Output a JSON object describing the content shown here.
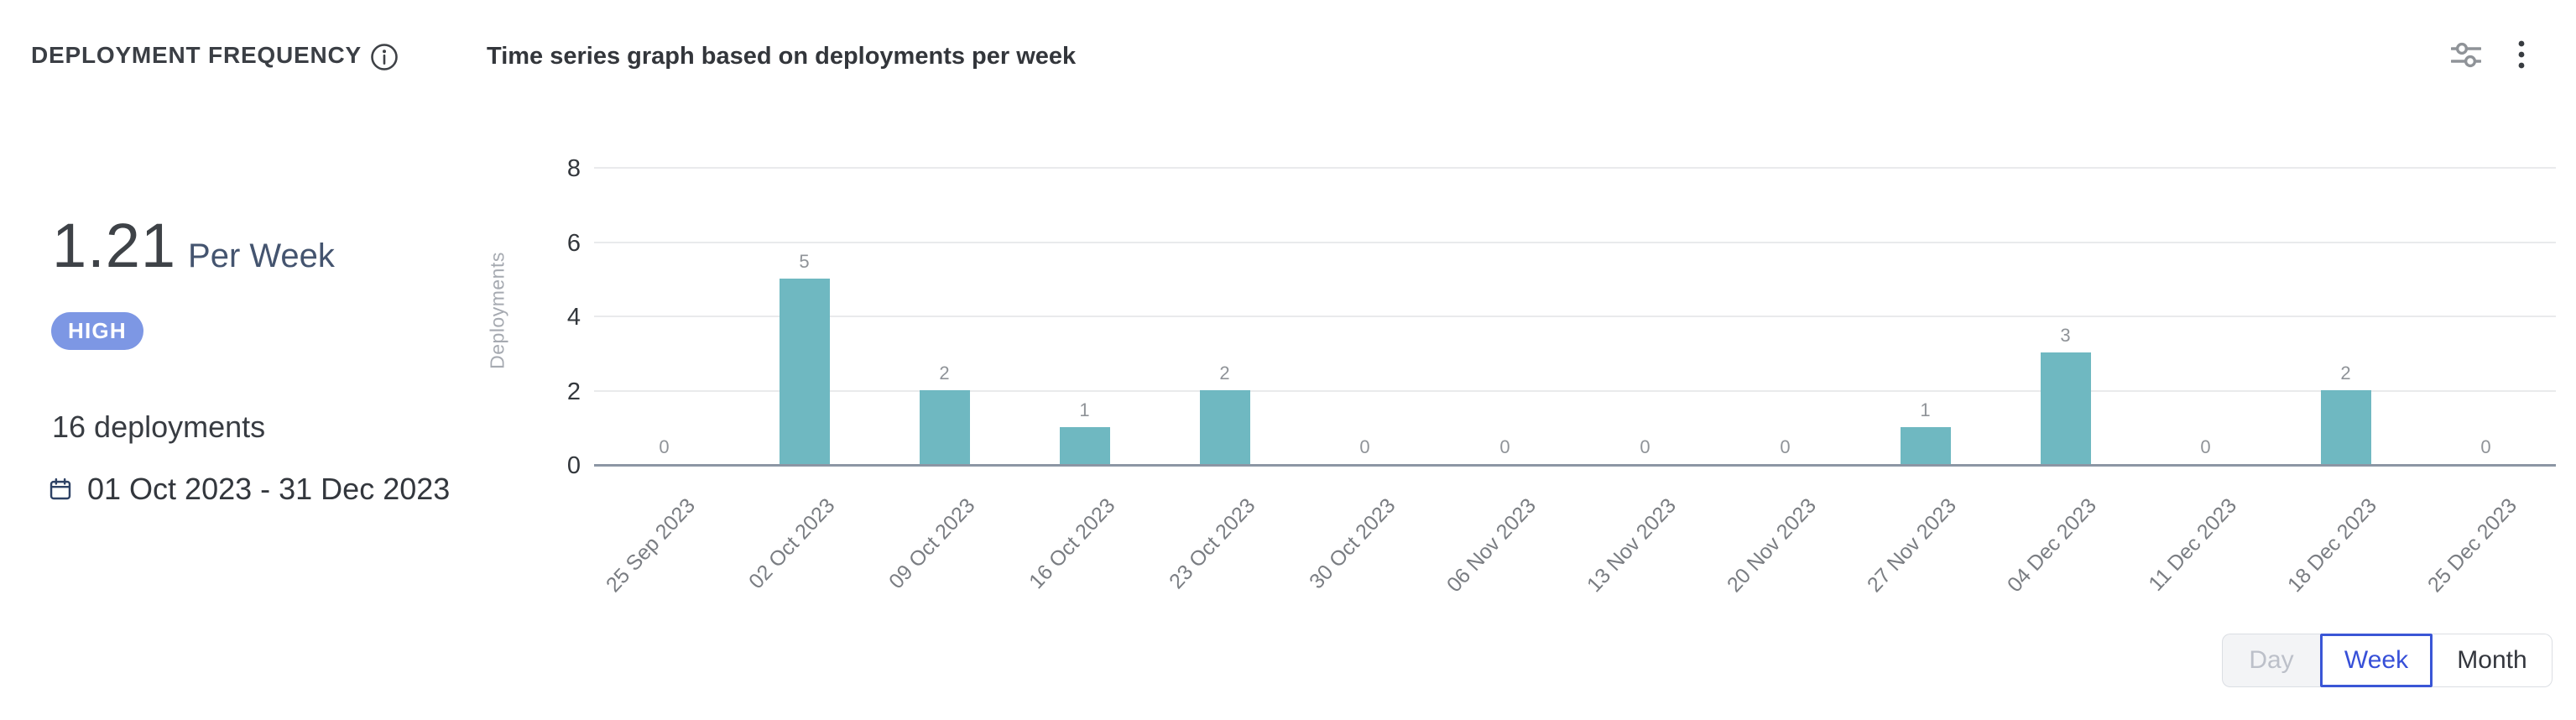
{
  "header": {
    "title": "DEPLOYMENT FREQUENCY",
    "subtitle": "Time series graph based on deployments per week"
  },
  "stats": {
    "value": "1.21",
    "unit": "Per Week",
    "badge": "HIGH",
    "total": "16 deployments",
    "date_range": "01 Oct 2023 - 31 Dec 2023"
  },
  "chart_data": {
    "type": "bar",
    "title": "Time series graph based on deployments per week",
    "ylabel": "Deployments",
    "xlabel": "",
    "categories": [
      "25 Sep 2023",
      "02 Oct 2023",
      "09 Oct 2023",
      "16 Oct 2023",
      "23 Oct 2023",
      "30 Oct 2023",
      "06 Nov 2023",
      "13 Nov 2023",
      "20 Nov 2023",
      "27 Nov 2023",
      "04 Dec 2023",
      "11 Dec 2023",
      "18 Dec 2023",
      "25 Dec 2023"
    ],
    "values": [
      0,
      5,
      2,
      1,
      2,
      0,
      0,
      0,
      0,
      1,
      3,
      0,
      2,
      0
    ],
    "yticks": [
      0,
      2,
      4,
      6,
      8
    ],
    "ylim": [
      0,
      8
    ],
    "grid": true,
    "legend_position": "none"
  },
  "period_toggle": {
    "options": [
      {
        "label": "Day",
        "state": "disabled"
      },
      {
        "label": "Week",
        "state": "selected"
      },
      {
        "label": "Month",
        "state": "default"
      }
    ]
  },
  "colors": {
    "bar": "#6FB8C1",
    "badge_bg": "#7D97E4",
    "badge_text": "#FFFFFF",
    "selected_toggle": "#3A56D6",
    "axis_baseline": "#8C96A4",
    "gridline": "#E9EAEC"
  }
}
